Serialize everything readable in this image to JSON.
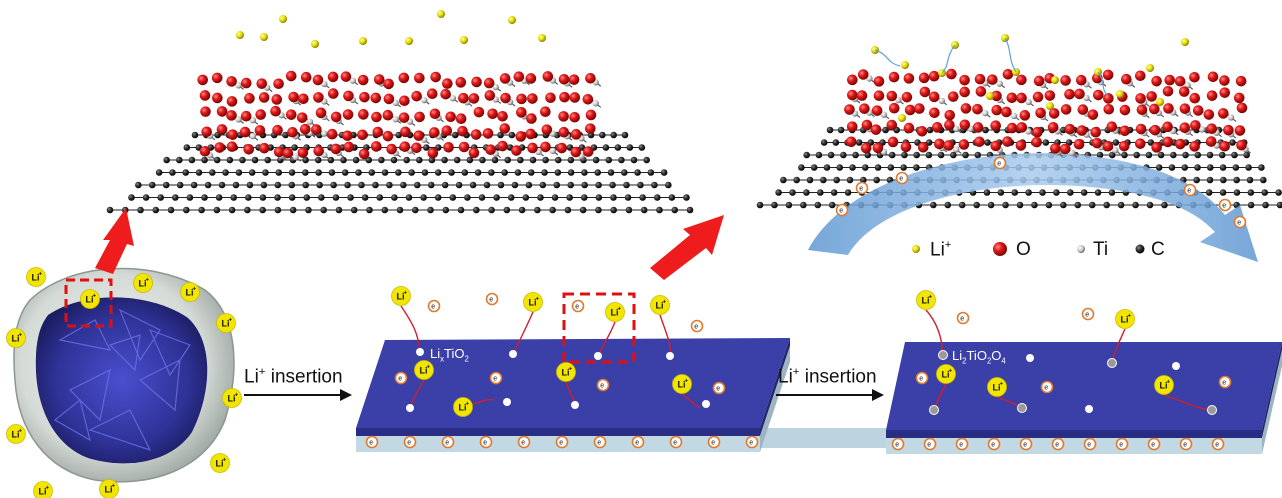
{
  "labels": {
    "insertion_prefix": "Li",
    "insertion_sup": "+",
    "insertion_suffix": " insertion",
    "lixtio2_main": "Li",
    "lixtio2_sub_x": "x",
    "lixtio2_mid": "TiO",
    "lixtio2_sub_2": "2",
    "li2_main": "Li",
    "li2_sub_a": "2",
    "li2_mid1": "TiO",
    "li2_sub_b": "2",
    "li2_mid2": "O",
    "li2_sub_c": "4"
  },
  "legend": {
    "li": {
      "text": "Li",
      "sup": "+"
    },
    "o": {
      "text": "O"
    },
    "ti": {
      "text": "Ti"
    },
    "c": {
      "text": "C"
    }
  },
  "badges": {
    "li_ion": "Li",
    "li_ion_sup": "+",
    "electron": "e",
    "electron_sup": "-"
  },
  "colors": {
    "slab_top": "#3a3ea6",
    "slab_front": "#2a2d86",
    "slab_base": "#b9d3de",
    "li_yellow": "#f2e600",
    "oxygen_red": "#d01616",
    "titanium_gray": "#c9c9c9",
    "carbon_black": "#2a2a2a",
    "big_arrow_red": "#ee1c1c",
    "curved_arrow_blue": "#6fa3d6",
    "red_wire": "#d21f2b"
  }
}
